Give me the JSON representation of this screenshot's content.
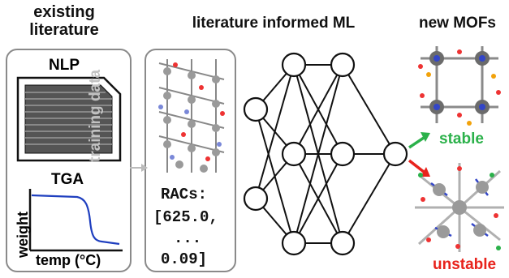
{
  "titles": {
    "existing": "existing\nliterature",
    "ml": "literature informed ML",
    "mofs": "new MOFs"
  },
  "literature_panel": {
    "nlp": "NLP",
    "tga": "TGA",
    "ylabel": "weight",
    "xlabel": "temp (°C)"
  },
  "arrow_label": "training data",
  "racs": {
    "title": "RACs:",
    "first": "[625.0,",
    "ellipsis": "...",
    "last": "0.09]"
  },
  "outcomes": {
    "stable": "stable",
    "unstable": "unstable"
  },
  "colors": {
    "tga_curve": "#1f3fbf",
    "stable": "#2bb14a",
    "unstable": "#e8231c",
    "panel_border": "#8a8a8a",
    "training_text": "#c2c2c2"
  }
}
